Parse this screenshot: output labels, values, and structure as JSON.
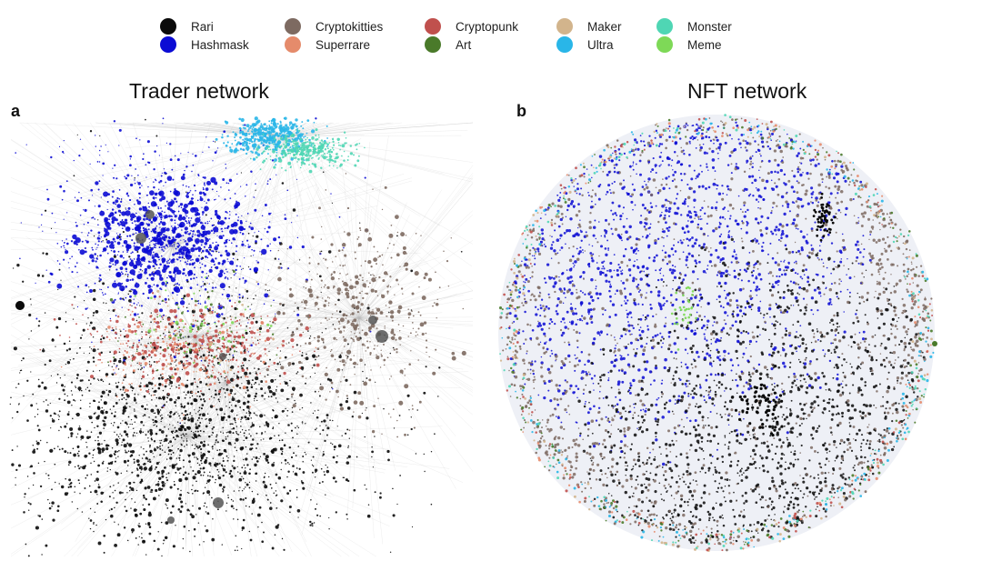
{
  "legend": [
    {
      "label": "Rari",
      "color": "#0a0a0a"
    },
    {
      "label": "Hashmask",
      "color": "#0b0bd4"
    },
    {
      "label": "Cryptokitties",
      "color": "#7d6a61"
    },
    {
      "label": "Superrare",
      "color": "#e58b6b"
    },
    {
      "label": "Cryptopunk",
      "color": "#c0504d"
    },
    {
      "label": "Art",
      "color": "#4a7a2a"
    },
    {
      "label": "Maker",
      "color": "#d2b48c"
    },
    {
      "label": "Ultra",
      "color": "#29b6e8"
    },
    {
      "label": "Monster",
      "color": "#4fd6b4"
    },
    {
      "label": "Meme",
      "color": "#7ed957"
    }
  ],
  "panels": {
    "a": {
      "letter": "a",
      "title": "Trader network"
    },
    "b": {
      "letter": "b",
      "title": "NFT network"
    }
  }
}
